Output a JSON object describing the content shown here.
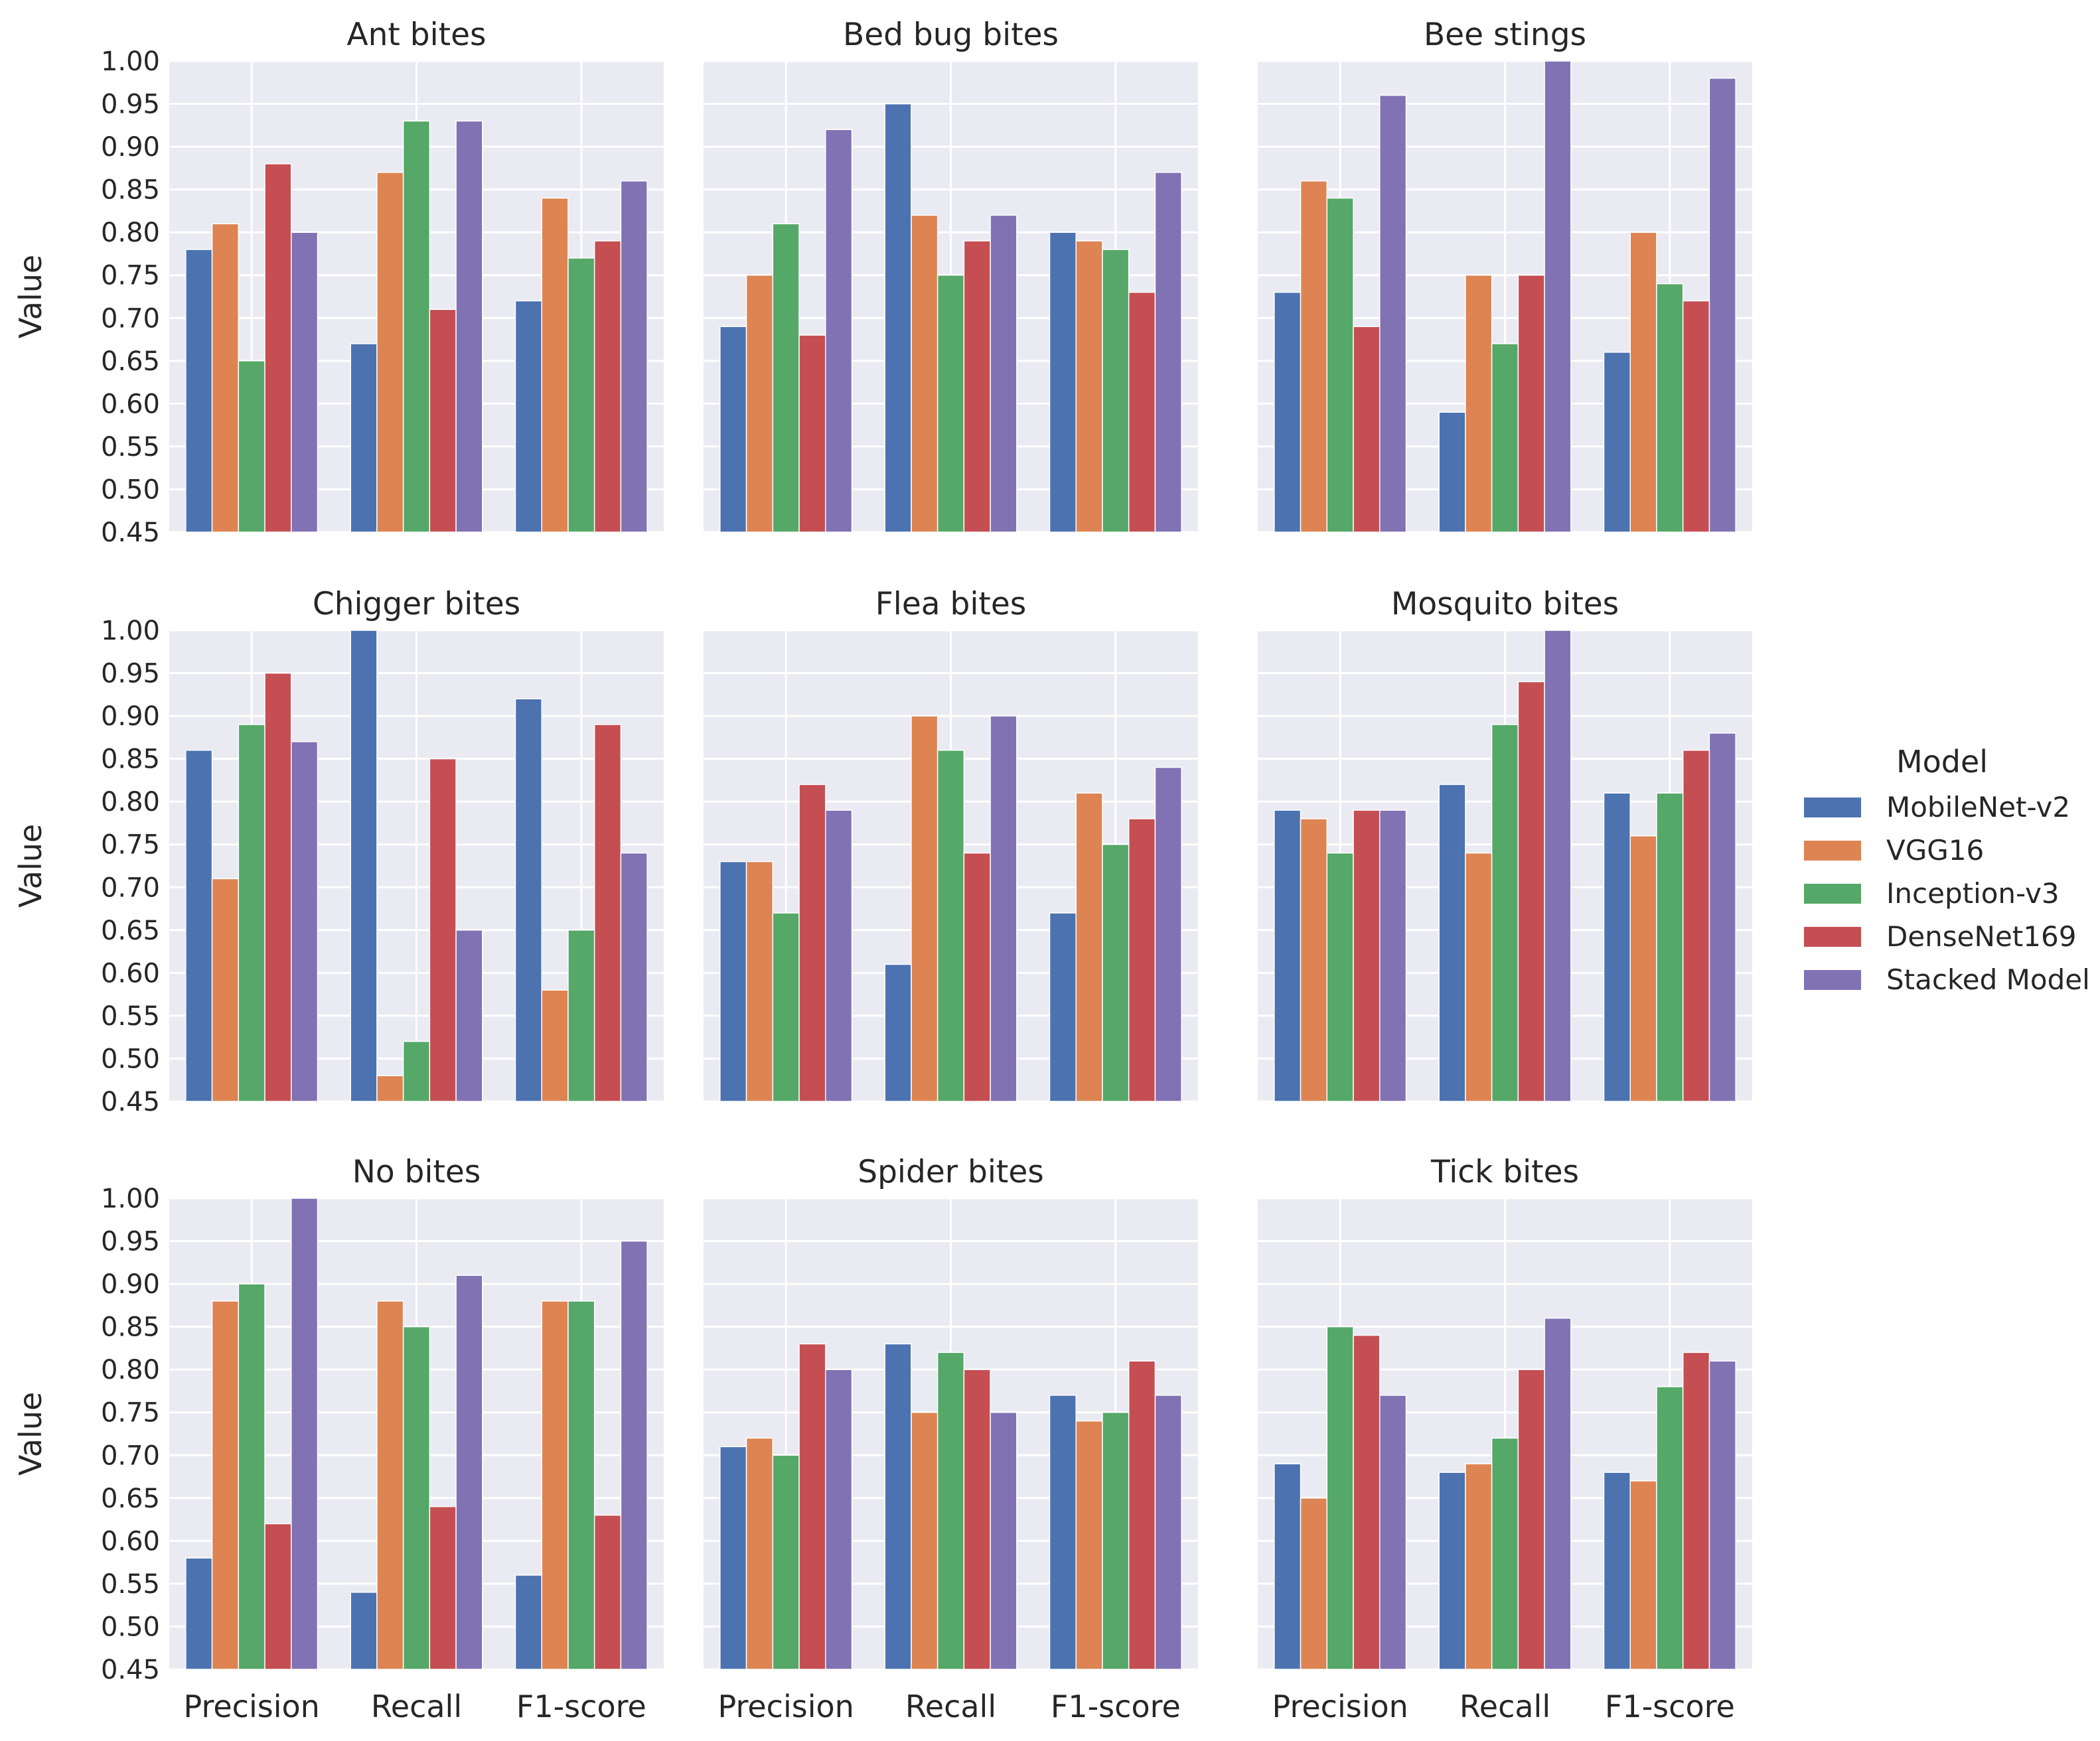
{
  "chart_data": {
    "type": "bar",
    "layout": "faceted-grid-3x3",
    "ylabel": "Value",
    "ylim": [
      0.45,
      1.0
    ],
    "yticks": [
      "0.45",
      "0.50",
      "0.55",
      "0.60",
      "0.65",
      "0.70",
      "0.75",
      "0.80",
      "0.85",
      "0.90",
      "0.95",
      "1.00"
    ],
    "categories": [
      "Precision",
      "Recall",
      "F1-score"
    ],
    "grid": true,
    "legend": {
      "title": "Model",
      "placement": "right",
      "entries": [
        "MobileNet-v2",
        "VGG16",
        "Inception-v3",
        "DenseNet169",
        "Stacked Model"
      ]
    },
    "colors": [
      "#4c72b0",
      "#dd8452",
      "#55a868",
      "#c44e52",
      "#8172b3"
    ],
    "panels": [
      {
        "title": "Ant bites",
        "series": [
          {
            "name": "MobileNet-v2",
            "values": [
              0.78,
              0.67,
              0.72
            ]
          },
          {
            "name": "VGG16",
            "values": [
              0.81,
              0.87,
              0.84
            ]
          },
          {
            "name": "Inception-v3",
            "values": [
              0.65,
              0.93,
              0.77
            ]
          },
          {
            "name": "DenseNet169",
            "values": [
              0.88,
              0.71,
              0.79
            ]
          },
          {
            "name": "Stacked Model",
            "values": [
              0.8,
              0.93,
              0.86
            ]
          }
        ]
      },
      {
        "title": "Bed bug bites",
        "series": [
          {
            "name": "MobileNet-v2",
            "values": [
              0.69,
              0.95,
              0.8
            ]
          },
          {
            "name": "VGG16",
            "values": [
              0.75,
              0.82,
              0.79
            ]
          },
          {
            "name": "Inception-v3",
            "values": [
              0.81,
              0.75,
              0.78
            ]
          },
          {
            "name": "DenseNet169",
            "values": [
              0.68,
              0.79,
              0.73
            ]
          },
          {
            "name": "Stacked Model",
            "values": [
              0.92,
              0.82,
              0.87
            ]
          }
        ]
      },
      {
        "title": "Bee stings",
        "series": [
          {
            "name": "MobileNet-v2",
            "values": [
              0.73,
              0.59,
              0.66
            ]
          },
          {
            "name": "VGG16",
            "values": [
              0.86,
              0.75,
              0.8
            ]
          },
          {
            "name": "Inception-v3",
            "values": [
              0.84,
              0.67,
              0.74
            ]
          },
          {
            "name": "DenseNet169",
            "values": [
              0.69,
              0.75,
              0.72
            ]
          },
          {
            "name": "Stacked Model",
            "values": [
              0.96,
              1.0,
              0.98
            ]
          }
        ]
      },
      {
        "title": "Chigger bites",
        "series": [
          {
            "name": "MobileNet-v2",
            "values": [
              0.86,
              1.0,
              0.92
            ]
          },
          {
            "name": "VGG16",
            "values": [
              0.71,
              0.48,
              0.58
            ]
          },
          {
            "name": "Inception-v3",
            "values": [
              0.89,
              0.52,
              0.65
            ]
          },
          {
            "name": "DenseNet169",
            "values": [
              0.95,
              0.85,
              0.89
            ]
          },
          {
            "name": "Stacked Model",
            "values": [
              0.87,
              0.65,
              0.74
            ]
          }
        ]
      },
      {
        "title": "Flea bites",
        "series": [
          {
            "name": "MobileNet-v2",
            "values": [
              0.73,
              0.61,
              0.67
            ]
          },
          {
            "name": "VGG16",
            "values": [
              0.73,
              0.9,
              0.81
            ]
          },
          {
            "name": "Inception-v3",
            "values": [
              0.67,
              0.86,
              0.75
            ]
          },
          {
            "name": "DenseNet169",
            "values": [
              0.82,
              0.74,
              0.78
            ]
          },
          {
            "name": "Stacked Model",
            "values": [
              0.79,
              0.9,
              0.84
            ]
          }
        ]
      },
      {
        "title": "Mosquito bites",
        "series": [
          {
            "name": "MobileNet-v2",
            "values": [
              0.79,
              0.82,
              0.81
            ]
          },
          {
            "name": "VGG16",
            "values": [
              0.78,
              0.74,
              0.76
            ]
          },
          {
            "name": "Inception-v3",
            "values": [
              0.74,
              0.89,
              0.81
            ]
          },
          {
            "name": "DenseNet169",
            "values": [
              0.79,
              0.94,
              0.86
            ]
          },
          {
            "name": "Stacked Model",
            "values": [
              0.79,
              1.0,
              0.88
            ]
          }
        ]
      },
      {
        "title": "No bites",
        "series": [
          {
            "name": "MobileNet-v2",
            "values": [
              0.58,
              0.54,
              0.56
            ]
          },
          {
            "name": "VGG16",
            "values": [
              0.88,
              0.88,
              0.88
            ]
          },
          {
            "name": "Inception-v3",
            "values": [
              0.9,
              0.85,
              0.88
            ]
          },
          {
            "name": "DenseNet169",
            "values": [
              0.62,
              0.64,
              0.63
            ]
          },
          {
            "name": "Stacked Model",
            "values": [
              1.0,
              0.91,
              0.95
            ]
          }
        ]
      },
      {
        "title": "Spider bites",
        "series": [
          {
            "name": "MobileNet-v2",
            "values": [
              0.71,
              0.83,
              0.77
            ]
          },
          {
            "name": "VGG16",
            "values": [
              0.72,
              0.75,
              0.74
            ]
          },
          {
            "name": "Inception-v3",
            "values": [
              0.7,
              0.82,
              0.75
            ]
          },
          {
            "name": "DenseNet169",
            "values": [
              0.83,
              0.8,
              0.81
            ]
          },
          {
            "name": "Stacked Model",
            "values": [
              0.8,
              0.75,
              0.77
            ]
          }
        ]
      },
      {
        "title": "Tick bites",
        "series": [
          {
            "name": "MobileNet-v2",
            "values": [
              0.69,
              0.68,
              0.68
            ]
          },
          {
            "name": "VGG16",
            "values": [
              0.65,
              0.69,
              0.67
            ]
          },
          {
            "name": "Inception-v3",
            "values": [
              0.85,
              0.72,
              0.78
            ]
          },
          {
            "name": "DenseNet169",
            "values": [
              0.84,
              0.8,
              0.82
            ]
          },
          {
            "name": "Stacked Model",
            "values": [
              0.77,
              0.86,
              0.81
            ]
          }
        ]
      }
    ]
  }
}
